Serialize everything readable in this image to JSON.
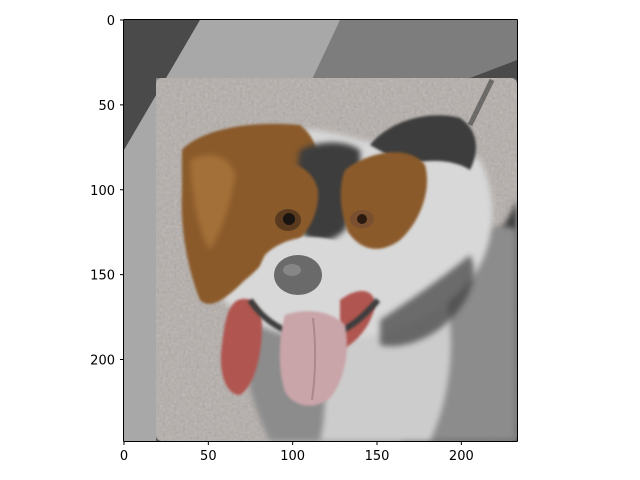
{
  "axes": {
    "x_ticks": [
      0,
      50,
      100,
      150,
      200
    ],
    "y_ticks": [
      0,
      50,
      100,
      150,
      200
    ],
    "x_limit": [
      0,
      233
    ],
    "y_limit": [
      0,
      248
    ]
  },
  "image": {
    "subject": "dog",
    "colors": {
      "frame_dark": "#4a4a4a",
      "frame_light": "#a8a8a8",
      "background_gray": "#b4aeaa",
      "fur_brown": "#8a5a2a",
      "fur_white": "#d8d8d8",
      "fur_gray": "#8c8c8c",
      "fur_dark": "#3c3c3c",
      "tongue": "#c9a4a8",
      "mouth_red": "#b0554f",
      "nose": "#6a6a6a"
    }
  }
}
